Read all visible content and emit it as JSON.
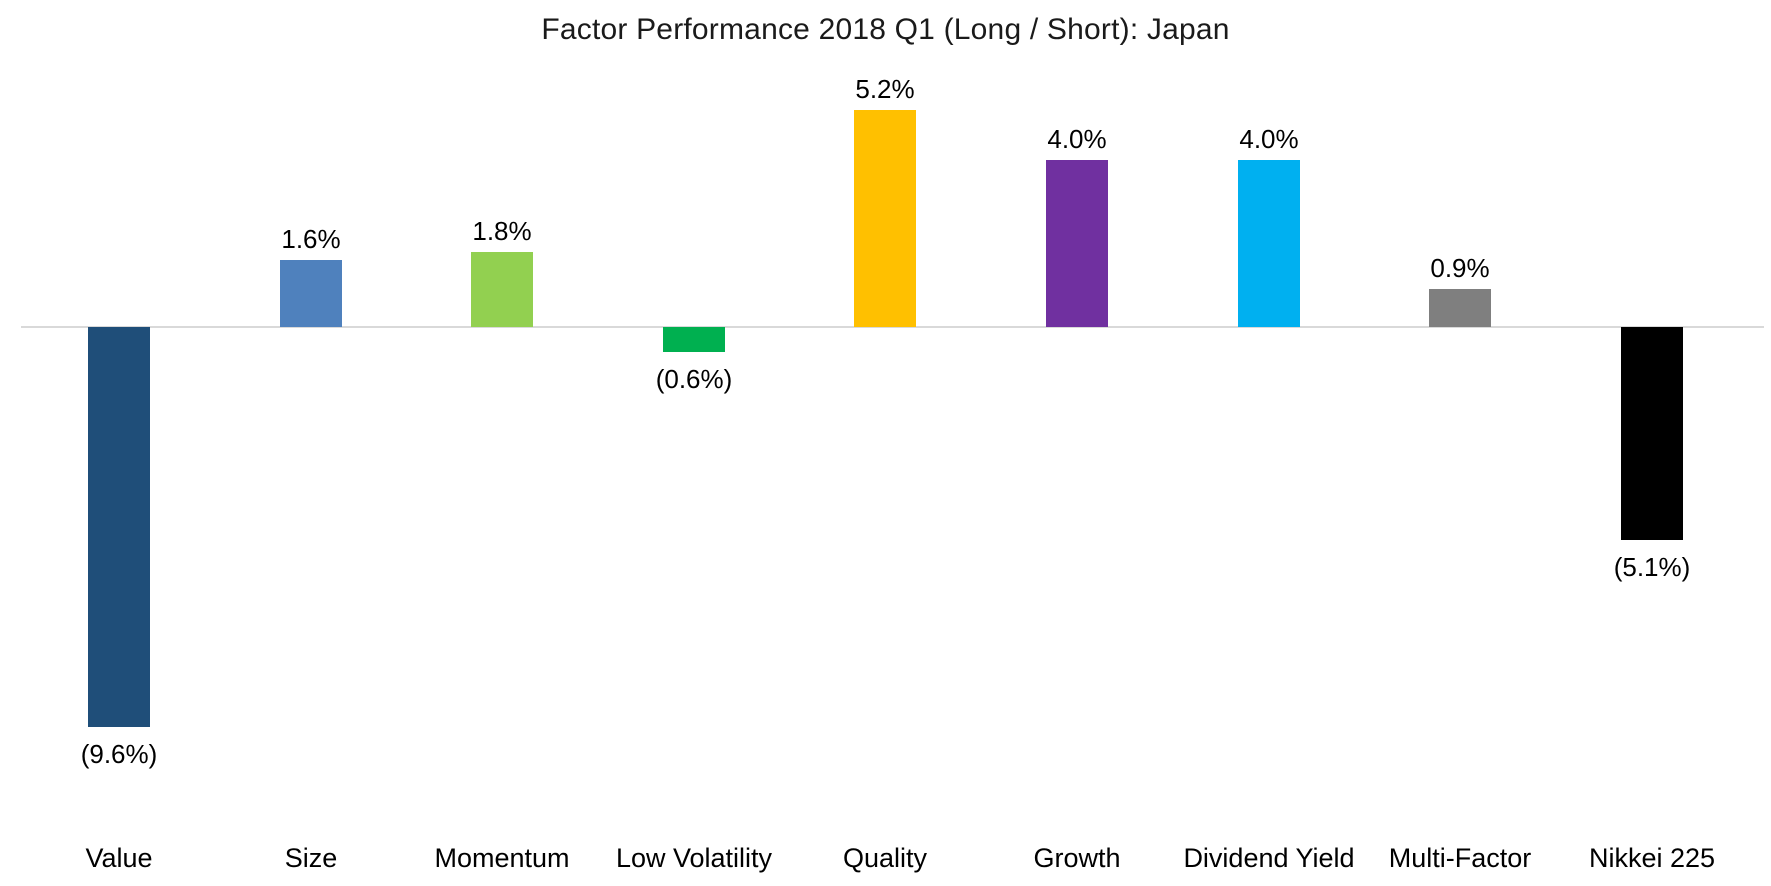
{
  "chart_data": {
    "type": "bar",
    "title": "Factor Performance 2018 Q1 (Long / Short): Japan",
    "categories": [
      "Value",
      "Size",
      "Momentum",
      "Low Volatility",
      "Quality",
      "Growth",
      "Dividend Yield",
      "Multi-Factor",
      "Nikkei 225"
    ],
    "values": [
      -9.6,
      1.6,
      1.8,
      -0.6,
      5.2,
      4.0,
      4.0,
      0.9,
      -5.1
    ],
    "value_labels": [
      "(9.6%)",
      "1.6%",
      "1.8%",
      "(0.6%)",
      "5.2%",
      "4.0%",
      "4.0%",
      "0.9%",
      "(5.1%)"
    ],
    "bar_colors": [
      "#1F4E79",
      "#4F81BD",
      "#92D050",
      "#00B050",
      "#FFC000",
      "#7030A0",
      "#00B0F0",
      "#7F7F7F",
      "#000000"
    ],
    "colors": {
      "axis_line": "#D9D9D9",
      "title_text": "#1a1a1a",
      "label_text": "#000000",
      "background": "#FFFFFF"
    },
    "xlabel": "",
    "ylabel": "",
    "ylim": [
      -10.5,
      6.0
    ],
    "grid": false,
    "legend_position": "none",
    "data_label_format": "percent, negatives in parentheses"
  }
}
